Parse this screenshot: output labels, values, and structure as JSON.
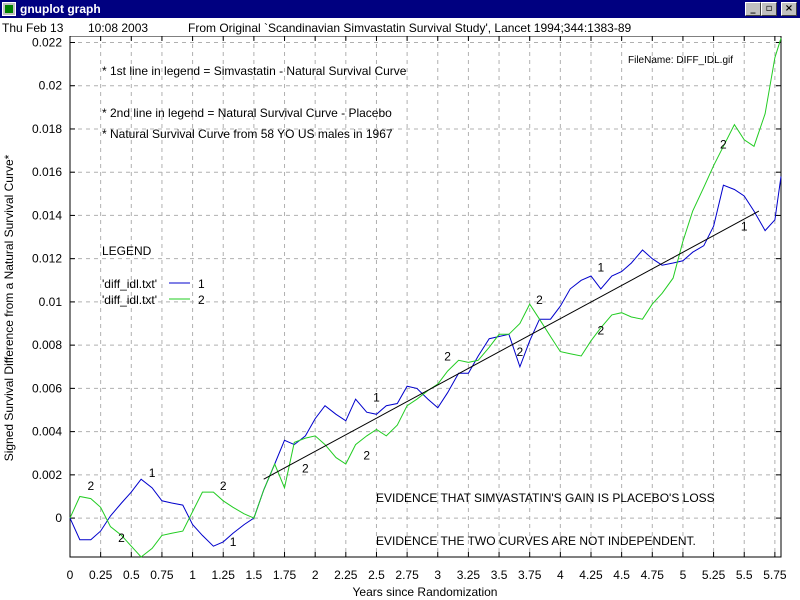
{
  "window": {
    "title": "gnuplot graph",
    "minimize_label": "_",
    "maximize_label": "▫",
    "close_label": "×"
  },
  "header": {
    "date": "Thu Feb 13",
    "time": "10:08 2003",
    "source": "From Original `Scandinavian Simvastatin Survival Study', Lancet 1994;344:1383-89"
  },
  "chart_data": {
    "type": "line",
    "xlabel": "Years since Randomization",
    "ylabel": "Signed Survival Difference from a Natural Survival Curve*",
    "xlim": [
      0,
      5.8
    ],
    "ylim": [
      -0.0018,
      0.0223
    ],
    "x_ticks": [
      "0",
      "0.25",
      "0.5",
      "0.75",
      "1",
      "1.25",
      "1.5",
      "1.75",
      "2",
      "2.25",
      "2.5",
      "2.75",
      "3",
      "3.25",
      "3.5",
      "3.75",
      "4",
      "4.25",
      "4.5",
      "4.75",
      "5",
      "5.25",
      "5.5",
      "5.75"
    ],
    "y_ticks": [
      "0",
      "0.002",
      "0.004",
      "0.006",
      "0.008",
      "0.01",
      "0.012",
      "0.014",
      "0.016",
      "0.018",
      "0.02",
      "0.022"
    ],
    "grid": true,
    "filename": "FileName: DIFF_IDL.gif",
    "notes": [
      "* 1st line in legend = Simvastatin - Natural Survival Curve",
      "* 2nd line in legend = Natural Survival Curve - Placebo",
      "* Natural Survival Curve from 58 YO US males in 1967"
    ],
    "legend": {
      "title": "LEGEND",
      "placement": "left",
      "entries": [
        {
          "label": "'diff_idl.txt'",
          "marker": "1",
          "color": "#0000cc"
        },
        {
          "label": "'diff_idl.txt'",
          "marker": "2",
          "color": "#22cc22"
        }
      ]
    },
    "evidence": [
      "EVIDENCE THAT SIMVASTATIN'S GAIN IS PLACEBO'S LOSS",
      "EVIDENCE THE TWO CURVES ARE NOT INDEPENDENT."
    ],
    "series": [
      {
        "name": "1",
        "color": "#0000cc",
        "x": [
          0,
          0.08,
          0.17,
          0.25,
          0.33,
          0.42,
          0.5,
          0.58,
          0.67,
          0.75,
          0.83,
          0.92,
          1.0,
          1.08,
          1.17,
          1.25,
          1.33,
          1.42,
          1.5,
          1.58,
          1.67,
          1.75,
          1.83,
          1.92,
          2.0,
          2.08,
          2.17,
          2.25,
          2.33,
          2.42,
          2.5,
          2.58,
          2.67,
          2.75,
          2.83,
          2.92,
          3.0,
          3.08,
          3.17,
          3.25,
          3.33,
          3.42,
          3.5,
          3.58,
          3.67,
          3.75,
          3.83,
          3.92,
          4.0,
          4.08,
          4.17,
          4.25,
          4.33,
          4.42,
          4.5,
          4.58,
          4.67,
          4.75,
          4.83,
          4.92,
          5.0,
          5.08,
          5.17,
          5.25,
          5.33,
          5.42,
          5.5,
          5.58,
          5.67,
          5.75,
          5.8
        ],
        "values": [
          0,
          -0.001,
          -0.001,
          -0.0006,
          0.0001,
          0.0007,
          0.0012,
          0.0018,
          0.0014,
          0.0008,
          0.0007,
          0.0006,
          -0.0003,
          -0.0008,
          -0.0013,
          -0.0011,
          -0.0007,
          -0.0003,
          0,
          0.0013,
          0.0025,
          0.0036,
          0.0034,
          0.0038,
          0.0046,
          0.0052,
          0.0048,
          0.0045,
          0.0055,
          0.0049,
          0.0048,
          0.0052,
          0.0053,
          0.0061,
          0.006,
          0.0055,
          0.0051,
          0.0058,
          0.0067,
          0.0067,
          0.0075,
          0.0083,
          0.0084,
          0.0085,
          0.007,
          0.0082,
          0.0092,
          0.0092,
          0.0098,
          0.0106,
          0.011,
          0.0112,
          0.0106,
          0.0112,
          0.0114,
          0.0118,
          0.0124,
          0.012,
          0.0117,
          0.0118,
          0.0119,
          0.0123,
          0.0126,
          0.0135,
          0.0154,
          0.0152,
          0.0149,
          0.0142,
          0.0133,
          0.0138,
          0.0158
        ]
      },
      {
        "name": "2",
        "color": "#22cc22",
        "x": [
          0,
          0.08,
          0.17,
          0.25,
          0.33,
          0.42,
          0.5,
          0.58,
          0.67,
          0.75,
          0.83,
          0.92,
          1.0,
          1.08,
          1.17,
          1.25,
          1.33,
          1.42,
          1.5,
          1.58,
          1.67,
          1.75,
          1.83,
          1.92,
          2.0,
          2.08,
          2.17,
          2.25,
          2.33,
          2.42,
          2.5,
          2.58,
          2.67,
          2.75,
          2.83,
          2.92,
          3.0,
          3.08,
          3.17,
          3.25,
          3.33,
          3.42,
          3.5,
          3.58,
          3.67,
          3.75,
          3.83,
          3.92,
          4.0,
          4.08,
          4.17,
          4.25,
          4.33,
          4.42,
          4.5,
          4.58,
          4.67,
          4.75,
          4.83,
          4.92,
          5.0,
          5.08,
          5.17,
          5.25,
          5.33,
          5.42,
          5.5,
          5.58,
          5.67,
          5.75,
          5.8
        ],
        "values": [
          0,
          0.001,
          0.0009,
          0.0005,
          -0.0004,
          -0.0008,
          -0.0013,
          -0.0018,
          -0.0014,
          -0.0008,
          -0.0007,
          -0.0006,
          0.0003,
          0.0012,
          0.0012,
          0.0008,
          0.0005,
          0.0002,
          0,
          0.0013,
          0.0025,
          0.0014,
          0.0035,
          0.0037,
          0.0038,
          0.0034,
          0.0028,
          0.0025,
          0.0034,
          0.0038,
          0.0041,
          0.0038,
          0.0043,
          0.0052,
          0.0055,
          0.0059,
          0.0062,
          0.0068,
          0.0073,
          0.0072,
          0.0073,
          0.0079,
          0.0085,
          0.0085,
          0.009,
          0.0099,
          0.0092,
          0.0084,
          0.0077,
          0.0076,
          0.0075,
          0.0082,
          0.0088,
          0.0094,
          0.0095,
          0.0093,
          0.0092,
          0.0099,
          0.0104,
          0.0111,
          0.0128,
          0.0142,
          0.0153,
          0.0163,
          0.0172,
          0.0182,
          0.0175,
          0.0172,
          0.0187,
          0.0213,
          0.0222
        ]
      },
      {
        "name": "",
        "color": "#000000",
        "x": [
          1.58,
          5.62
        ],
        "values": [
          0.0018,
          0.0142
        ]
      }
    ],
    "annotations": [
      {
        "text": "1",
        "x": 0.67,
        "y": 0.0019
      },
      {
        "text": "1",
        "x": 1.33,
        "y": -0.0013
      },
      {
        "text": "1",
        "x": 2.5,
        "y": 0.0054
      },
      {
        "text": "1",
        "x": 4.33,
        "y": 0.0114
      },
      {
        "text": "1",
        "x": 5.5,
        "y": 0.0133
      },
      {
        "text": "2",
        "x": 0.17,
        "y": 0.0013
      },
      {
        "text": "2",
        "x": 0.42,
        "y": -0.0011
      },
      {
        "text": "2",
        "x": 1.25,
        "y": 0.0013
      },
      {
        "text": "2",
        "x": 1.92,
        "y": 0.0021
      },
      {
        "text": "2",
        "x": 2.42,
        "y": 0.0027
      },
      {
        "text": "2",
        "x": 3.08,
        "y": 0.0073
      },
      {
        "text": "2",
        "x": 3.67,
        "y": 0.0075
      },
      {
        "text": "2",
        "x": 3.83,
        "y": 0.0099
      },
      {
        "text": "2",
        "x": 4.33,
        "y": 0.0085
      },
      {
        "text": "2",
        "x": 5.33,
        "y": 0.0171
      }
    ]
  }
}
